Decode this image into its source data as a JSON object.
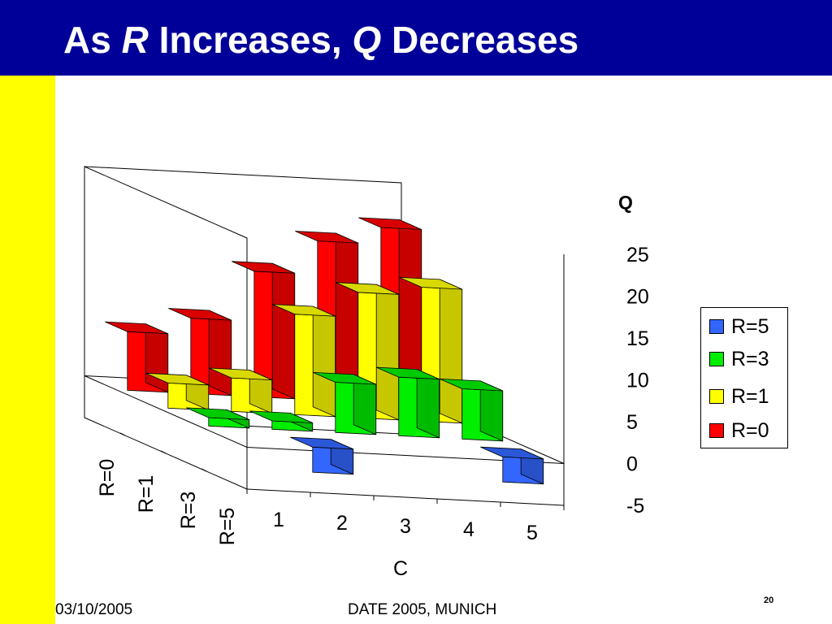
{
  "slide": {
    "title_parts": [
      "As ",
      "R",
      " Increases, ",
      "Q",
      " Decreases"
    ],
    "footer_date": "03/10/2005",
    "footer_event": "DATE 2005, MUNICH",
    "page_number": "20",
    "colors": {
      "title_bar": "#000099",
      "title_text": "#ffffff",
      "sidebar": "#ffff00"
    }
  },
  "chart_data": {
    "type": "bar",
    "subtype": "3d-column",
    "xlabel": "C",
    "zlabel": "Q",
    "categories": [
      "1",
      "2",
      "3",
      "4",
      "5"
    ],
    "depth_categories": [
      "R=0",
      "R=1",
      "R=3",
      "R=5"
    ],
    "zlim": [
      -5,
      25
    ],
    "zticks": [
      "25",
      "20",
      "15",
      "10",
      "5",
      "0",
      "-5"
    ],
    "grid": false,
    "legend_position": "right",
    "legend_entries": [
      {
        "name": "R=5",
        "color": "#3366ff"
      },
      {
        "name": "R=3",
        "color": "#00ee00"
      },
      {
        "name": "R=1",
        "color": "#ffff00"
      },
      {
        "name": "R=0",
        "color": "#ff0000"
      }
    ],
    "series": [
      {
        "name": "R=0",
        "color": "#ff0000",
        "values": [
          7,
          9,
          15,
          19,
          21
        ]
      },
      {
        "name": "R=1",
        "color": "#ffff00",
        "values": [
          3,
          4,
          12,
          15,
          16
        ]
      },
      {
        "name": "R=3",
        "color": "#00ee00",
        "values": [
          1,
          1,
          6,
          7,
          6
        ]
      },
      {
        "name": "R=5",
        "color": "#3366ff",
        "values": [
          0,
          -3,
          0,
          0,
          -3
        ]
      }
    ]
  }
}
